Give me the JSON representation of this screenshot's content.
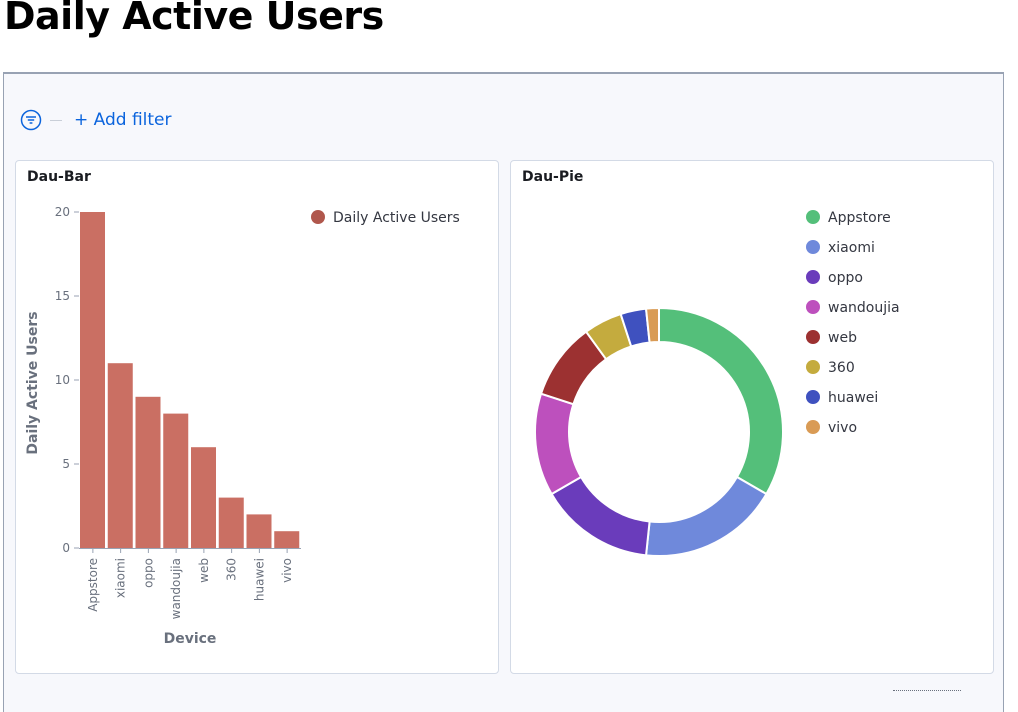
{
  "page": {
    "title": "Daily Active Users"
  },
  "filter_bar": {
    "add_filter_label": "+ Add filter",
    "icon": "filter-icon"
  },
  "colors": {
    "bar": "#ca6f63",
    "pie": [
      "#54bf7a",
      "#6f89db",
      "#6a3cbb",
      "#bd50bd",
      "#9c3131",
      "#c4ab3e",
      "#3f51bf",
      "#d99b55"
    ]
  },
  "chart_data": [
    {
      "type": "bar",
      "title": "Dau-Bar",
      "categories": [
        "Appstore",
        "xiaomi",
        "oppo",
        "wandoujia",
        "web",
        "360",
        "huawei",
        "vivo"
      ],
      "series": [
        {
          "name": "Daily Active Users",
          "values": [
            20,
            11,
            9,
            8,
            6,
            3,
            2,
            1
          ]
        }
      ],
      "xlabel": "Device",
      "ylabel": "Daily Active Users",
      "ylim": [
        0,
        20
      ],
      "yticks": [
        0,
        5,
        10,
        15,
        20
      ],
      "legend": "top-right",
      "grid": false
    },
    {
      "type": "pie",
      "title": "Dau-Pie",
      "donut": true,
      "labels": [
        "Appstore",
        "xiaomi",
        "oppo",
        "wandoujia",
        "web",
        "360",
        "huawei",
        "vivo"
      ],
      "values": [
        20,
        11,
        9,
        8,
        6,
        3,
        2,
        1
      ],
      "legend": "right"
    }
  ]
}
